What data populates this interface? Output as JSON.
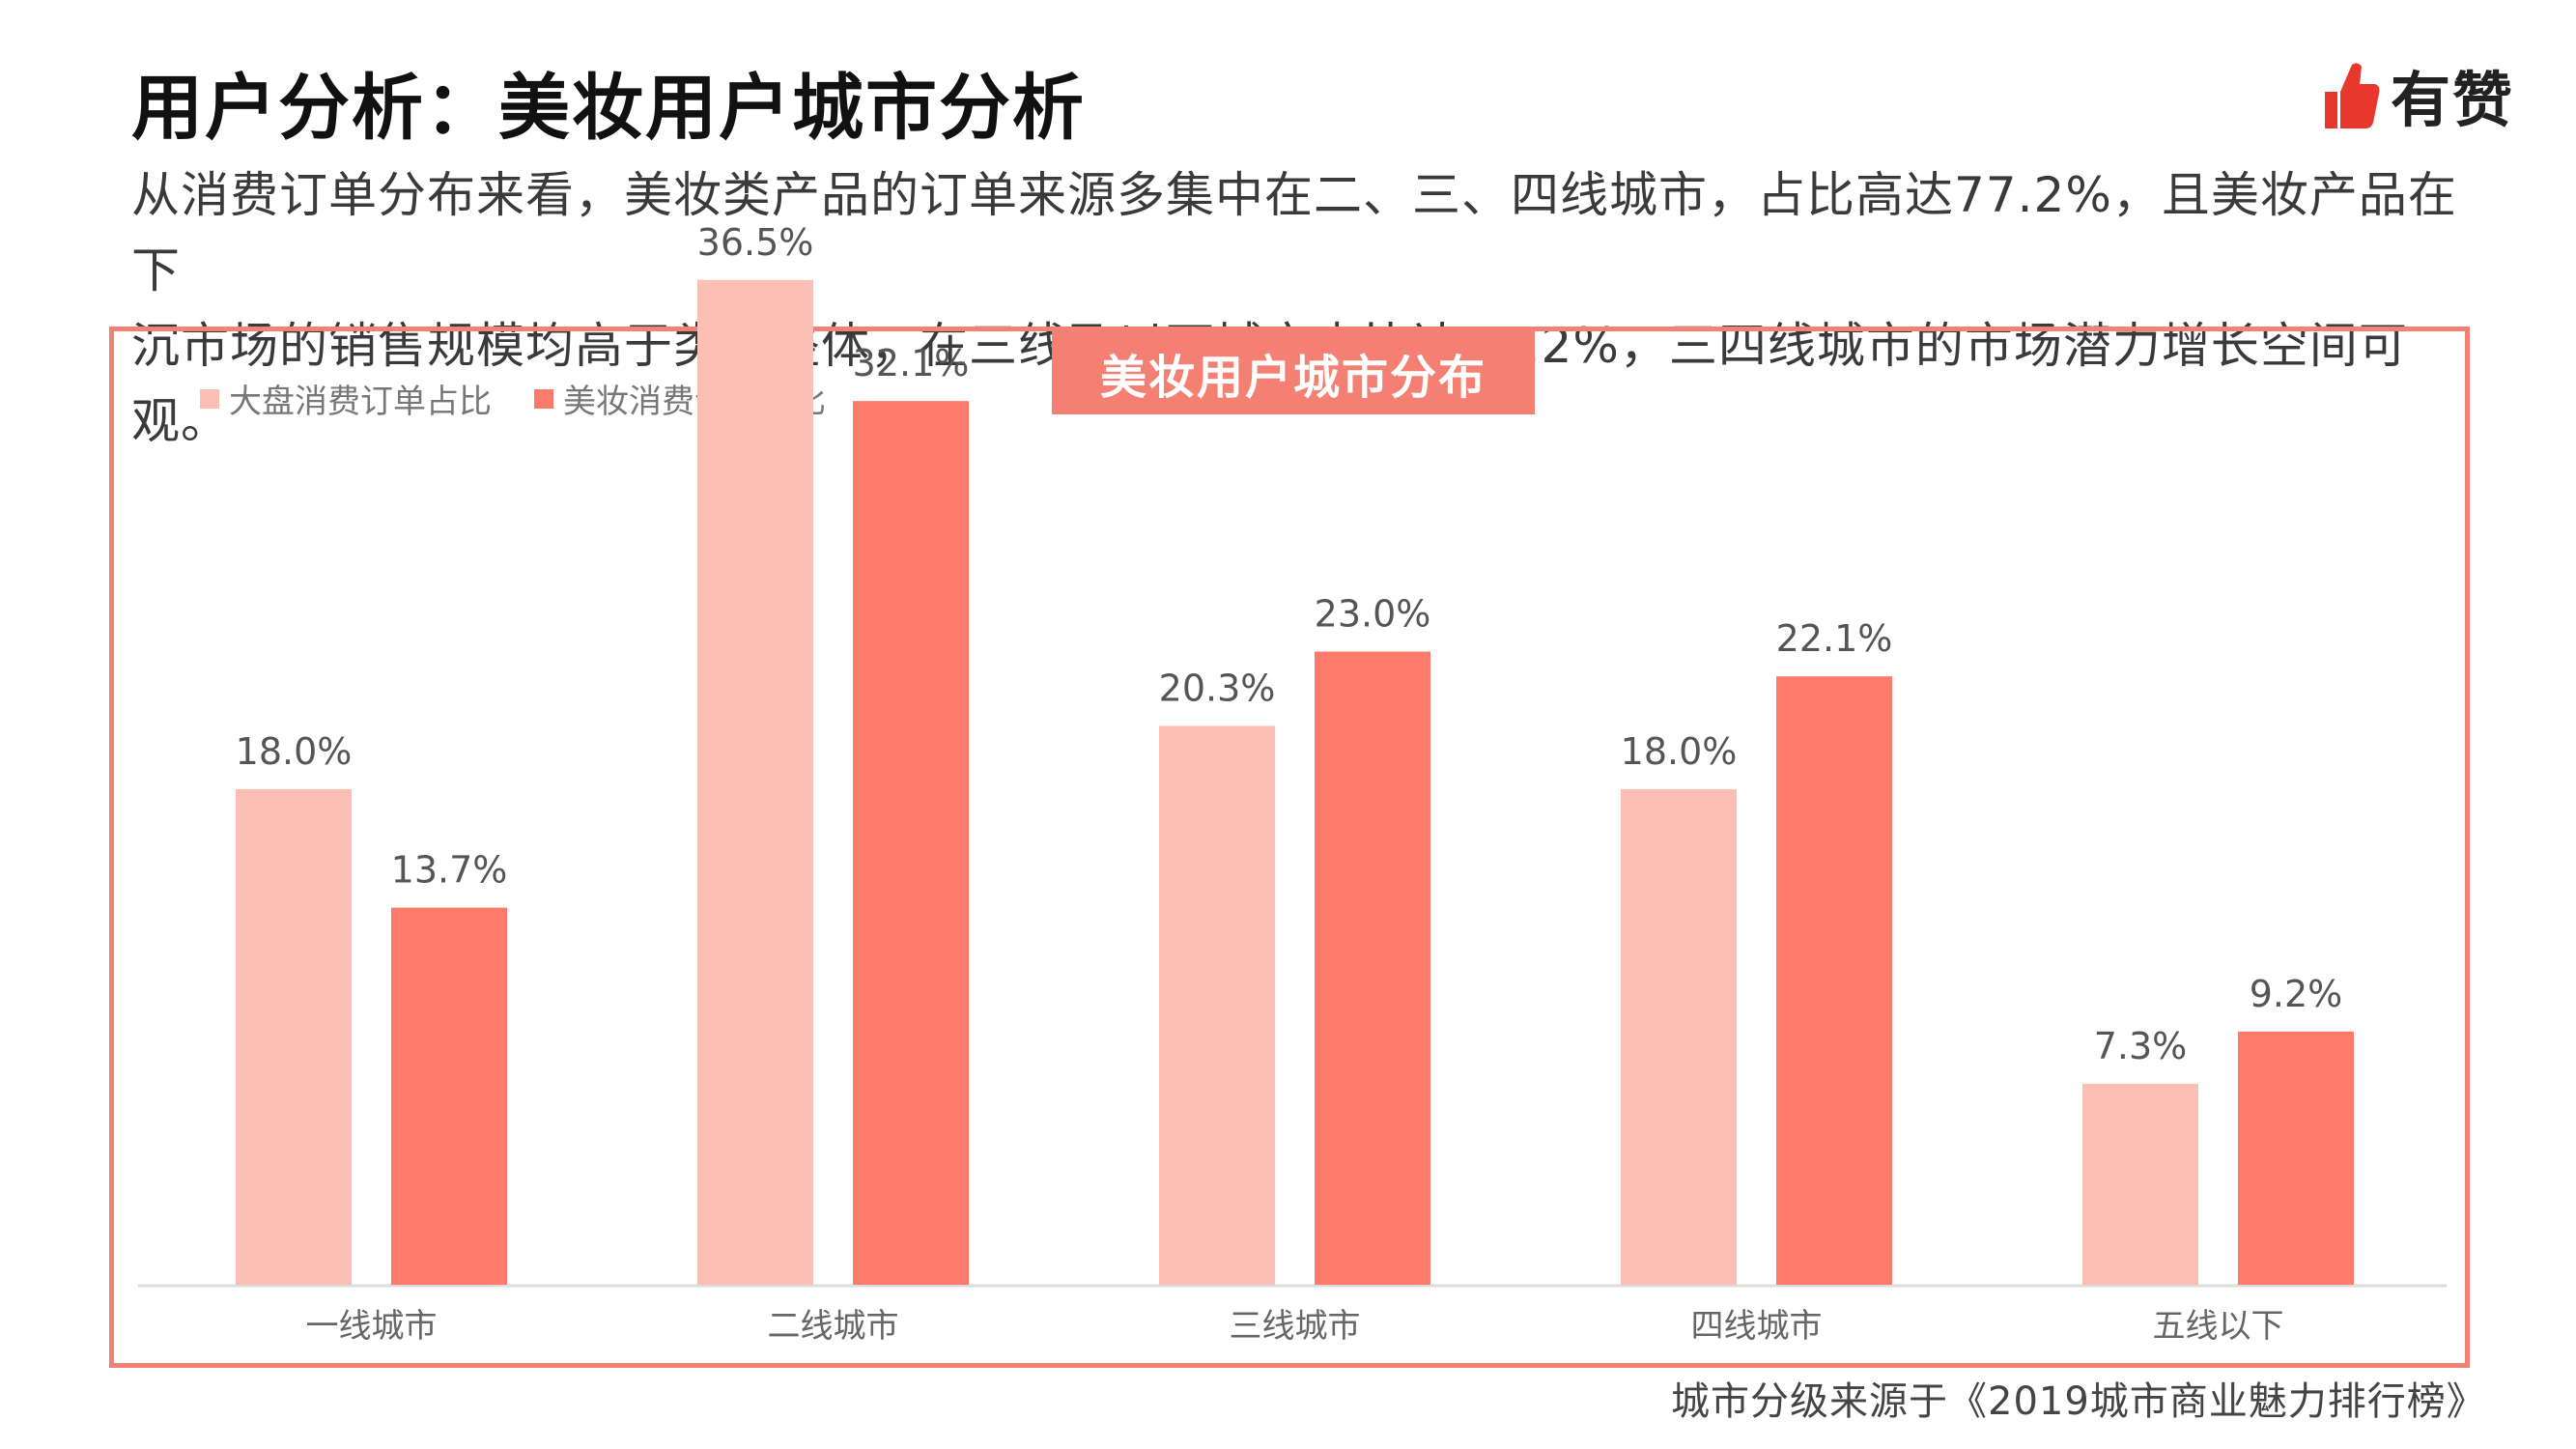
{
  "header": {
    "title": "用户分析：美妆用户城市分析",
    "logo_text": "有赞",
    "description_lines": [
      "从消费订单分布来看，美妆类产品的订单来源多集中在二、三、四线城市，占比高达77.2%，且美妆产品在下",
      "沉市场的销售规模均高于类目整体，在三线及以下城市占比达54.2%，三四线城市的市场潜力增长空间可观。"
    ]
  },
  "colors": {
    "accent": "#f47f73",
    "frame": "#f28176",
    "series_light": "#fcbfb6",
    "series_dark": "#fe7b6b",
    "axis": "#dddddd"
  },
  "chart_data": {
    "type": "bar",
    "title": "美妆用户城市分布",
    "categories": [
      "一线城市",
      "二线城市",
      "三线城市",
      "四线城市",
      "五线以下"
    ],
    "series": [
      {
        "name": "大盘消费订单占比",
        "values": [
          18.0,
          36.5,
          20.3,
          18.0,
          7.3
        ],
        "labels": [
          "18.0%",
          "36.5%",
          "20.3%",
          "18.0%",
          "7.3%"
        ],
        "color": "#fcbfb6"
      },
      {
        "name": "美妆消费订单占比",
        "values": [
          13.7,
          32.1,
          23.0,
          22.1,
          9.2
        ],
        "labels": [
          "13.7%",
          "32.1%",
          "23.0%",
          "22.1%",
          "9.2%"
        ],
        "color": "#fe7b6b"
      }
    ],
    "ylim": [
      0,
      40
    ],
    "grid": false,
    "legend_position": "top-left"
  },
  "footer": {
    "source": "城市分级来源于《2019城市商业魅力排行榜》"
  }
}
